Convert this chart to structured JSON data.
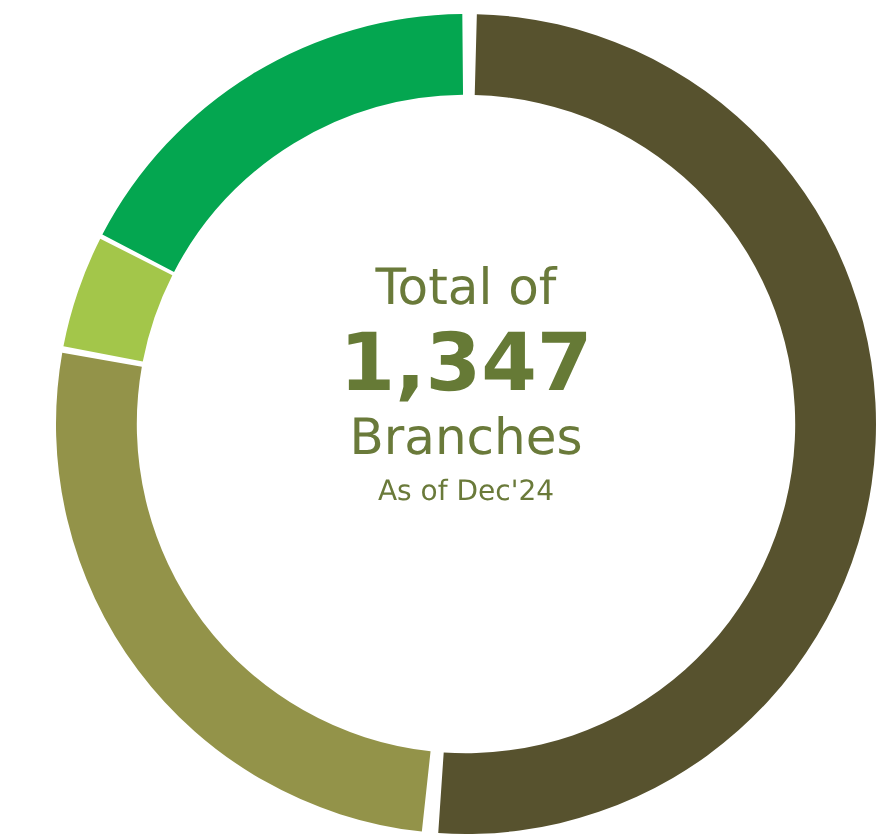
{
  "chart_data": {
    "type": "donut",
    "categories": [
      null,
      null,
      null,
      null
    ],
    "values": [
      51.5,
      26.5,
      4.5,
      17.5
    ],
    "colors": [
      "#57522e",
      "#939349",
      "#a3c64a",
      "#04a650"
    ],
    "annotations": [
      "Total of",
      "1,347",
      "Branches",
      "As of Dec'24"
    ]
  }
}
